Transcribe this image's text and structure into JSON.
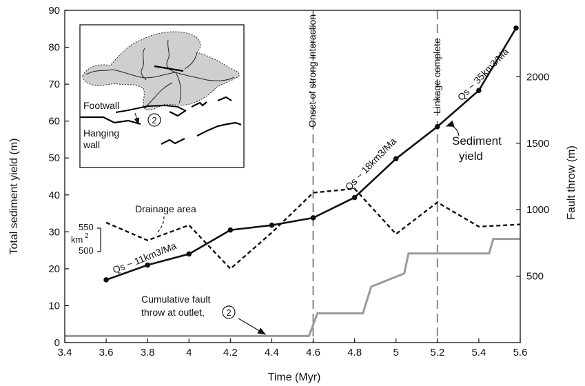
{
  "chart_data": {
    "type": "line",
    "xlabel": "Time (Myr)",
    "ylabel": "Total sediment yield (m)",
    "y2label": "Fault throw (m)",
    "xlim": [
      3.4,
      5.6
    ],
    "ylim": [
      0,
      90
    ],
    "y2lim": [
      0,
      2500
    ],
    "x_ticks": [
      "3.4",
      "3.6",
      "3.8",
      "4",
      "4.2",
      "4.4",
      "4.6",
      "4.8",
      "5",
      "5.2",
      "5.4",
      "5.6"
    ],
    "y_ticks": [
      "0",
      "10",
      "20",
      "30",
      "40",
      "50",
      "60",
      "70",
      "80",
      "90"
    ],
    "y2_ticks": [
      "500",
      "1000",
      "1500",
      "2000"
    ],
    "grid": false,
    "series": [
      {
        "name": "Sediment yield",
        "style": "solid-black-markers",
        "axis": "left",
        "x": [
          3.6,
          3.8,
          4.0,
          4.2,
          4.4,
          4.6,
          4.8,
          5.0,
          5.2,
          5.4,
          5.58
        ],
        "y": [
          17,
          21,
          24,
          30.5,
          31.8,
          33.8,
          39.3,
          49.8,
          58.5,
          68.3,
          85.2
        ]
      },
      {
        "name": "Drainage area",
        "style": "dashed-black",
        "axis": "left",
        "x": [
          3.6,
          3.8,
          4.0,
          4.2,
          4.4,
          4.6,
          4.8,
          5.0,
          5.2,
          5.4,
          5.6
        ],
        "y": [
          32.5,
          27.7,
          31.8,
          20,
          29.8,
          40.6,
          41.7,
          29.4,
          38,
          31.4,
          32
        ]
      },
      {
        "name": "Cumulative fault throw at outlet, ②",
        "style": "solid-gray",
        "axis": "right",
        "x": [
          3.4,
          4.58,
          4.62,
          4.84,
          4.88,
          5.04,
          5.06,
          5.45,
          5.47,
          5.6
        ],
        "y": [
          50,
          50,
          220,
          220,
          420,
          520,
          670,
          670,
          780,
          780
        ]
      }
    ],
    "vlines": [
      {
        "x": 4.6,
        "label": "Onset of strong interaction"
      },
      {
        "x": 5.2,
        "label": "Linkage complete"
      }
    ],
    "annotations": {
      "rate1": "Qs ~ 11km3/Ma",
      "rate2": "Qs ~ 18km3/Ma",
      "rate3": "Qs ~ 35km3/Ma",
      "sediment_label_1": "Sediment",
      "sediment_label_2": "yield",
      "drainage_label": "Drainage area",
      "throw_label_1": "Cumulative fault",
      "throw_label_2": "throw at outlet,",
      "scale_top": "550",
      "scale_unit": "km",
      "scale_sup": "2",
      "scale_bottom": "500"
    },
    "inset": {
      "footwall": "Footwall",
      "hanging_1": "Hanging",
      "hanging_2": "wall",
      "circle_num": "2"
    }
  }
}
